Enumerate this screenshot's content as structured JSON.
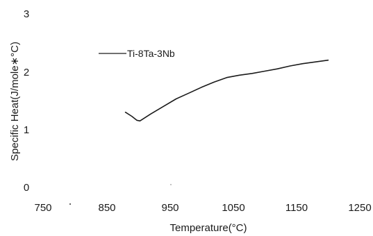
{
  "chart_data": {
    "type": "line",
    "title": "",
    "xlabel": "Temperature(°C)",
    "ylabel": "Specific Heat(J/mole∗°C)",
    "xlim": [
      750,
      1250
    ],
    "ylim": [
      0,
      3
    ],
    "x_ticks": [
      "750",
      "850",
      "950",
      "1050",
      "1150",
      "1250"
    ],
    "y_ticks": [
      "0",
      "1",
      "2",
      "3"
    ],
    "grid": false,
    "legend_position": "top-left",
    "series": [
      {
        "name": "Ti-8Ta-3Nb",
        "color": "#1a1a1a",
        "x": [
          880,
          890,
          898,
          903,
          920,
          940,
          960,
          980,
          1000,
          1020,
          1040,
          1060,
          1080,
          1100,
          1120,
          1140,
          1160,
          1180,
          1200
        ],
        "y": [
          1.3,
          1.23,
          1.16,
          1.15,
          1.27,
          1.4,
          1.53,
          1.63,
          1.73,
          1.82,
          1.9,
          1.94,
          1.97,
          2.01,
          2.05,
          2.1,
          2.14,
          2.17,
          2.2
        ]
      }
    ]
  }
}
